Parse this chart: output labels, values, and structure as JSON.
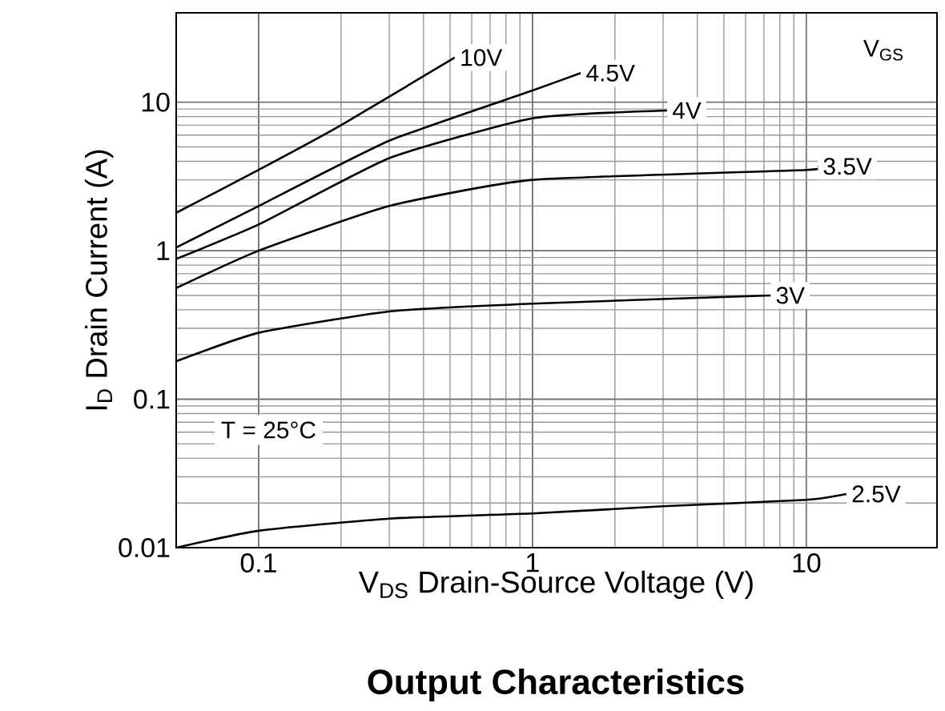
{
  "chart_data": {
    "type": "line",
    "title": "**Output Characteristics**",
    "xlabel": "V$_{DS}$ Drain-Source Voltage (V)",
    "ylabel": "I$_{D}$ Drain Current (A)",
    "log": "xy",
    "grid": true,
    "xlim": [
      0.05,
      30
    ],
    "ylim": [
      0.01,
      40
    ],
    "xticks": [
      0.1,
      1,
      10
    ],
    "yticks": [
      0.01,
      0.1,
      1,
      10
    ],
    "annotations": [
      "V$_{GS}$",
      "T = 25°C"
    ],
    "series": [
      {
        "name": "10V",
        "color": "#000000",
        "x": [
          0.05,
          0.1,
          0.2,
          0.52
        ],
        "values": [
          1.8,
          3.5,
          7,
          20
        ]
      },
      {
        "name": "4.5V",
        "color": "#000000",
        "x": [
          0.05,
          0.1,
          0.3,
          1,
          1.5
        ],
        "values": [
          1.05,
          2.0,
          5.5,
          12,
          15.7
        ]
      },
      {
        "name": "4V",
        "color": "#000000",
        "x": [
          0.05,
          0.1,
          0.3,
          1,
          3.1
        ],
        "values": [
          0.88,
          1.5,
          4.2,
          7.8,
          8.8
        ]
      },
      {
        "name": "3.5V",
        "color": "#000000",
        "x": [
          0.05,
          0.1,
          0.3,
          1,
          10,
          11
        ],
        "values": [
          0.56,
          1.0,
          2.0,
          3.0,
          3.5,
          3.7
        ]
      },
      {
        "name": "3V",
        "color": "#000000",
        "x": [
          0.05,
          0.1,
          0.3,
          1,
          7.4
        ],
        "values": [
          0.18,
          0.28,
          0.39,
          0.44,
          0.5
        ]
      },
      {
        "name": "2.5V",
        "color": "#000000",
        "x": [
          0.05,
          0.1,
          0.3,
          1,
          3,
          10,
          14
        ],
        "values": [
          0.01,
          0.013,
          0.0157,
          0.017,
          0.019,
          0.021,
          0.023
        ]
      }
    ]
  }
}
